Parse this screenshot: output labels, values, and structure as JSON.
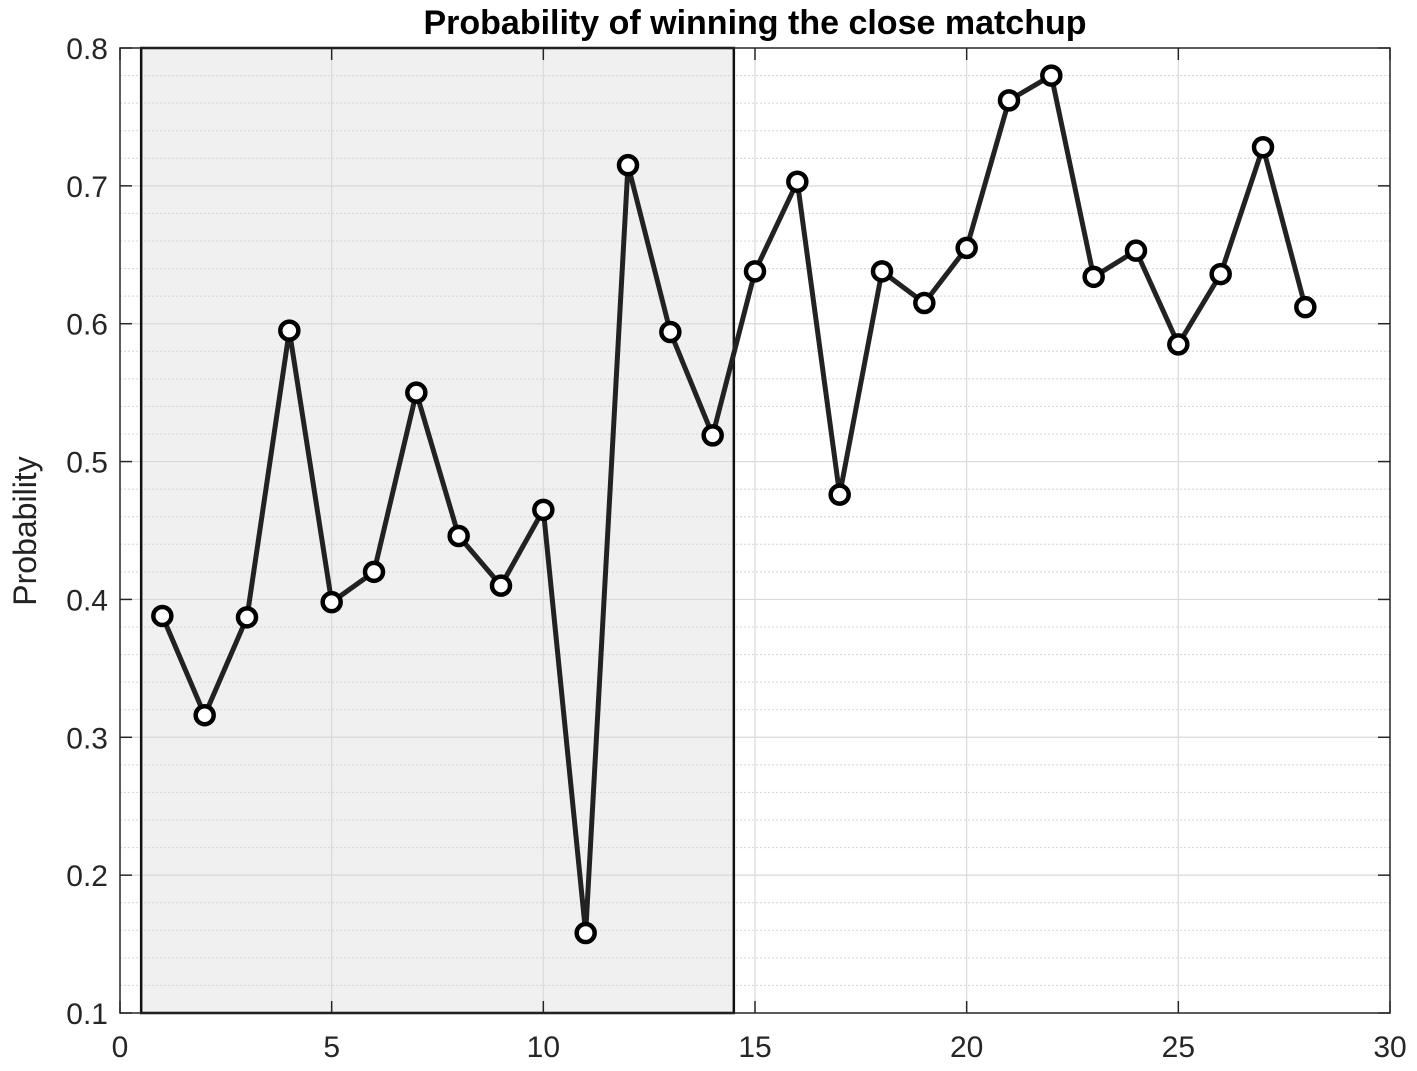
{
  "chart_data": {
    "type": "line",
    "title": "Probability of winning the close matchup",
    "xlabel": "",
    "ylabel": "Probability",
    "xlim": [
      0,
      30
    ],
    "ylim": [
      0.1,
      0.8
    ],
    "xticks": [
      0,
      5,
      10,
      15,
      20,
      25,
      30
    ],
    "yticks": [
      0.1,
      0.2,
      0.3,
      0.4,
      0.5,
      0.6,
      0.7,
      0.8
    ],
    "grid": true,
    "minor_grid_y": true,
    "shaded_region": {
      "x_start": 0.5,
      "x_end": 14.5,
      "color": "#f0f0f0"
    },
    "series": [
      {
        "color": "#222222",
        "marker": "open-circle",
        "x": [
          1,
          2,
          3,
          4,
          5,
          6,
          7,
          8,
          9,
          10,
          11,
          12,
          13,
          14,
          15,
          16,
          17,
          18,
          19,
          20,
          21,
          22,
          23,
          24,
          25,
          26,
          27,
          28
        ],
        "y": [
          0.388,
          0.316,
          0.387,
          0.595,
          0.398,
          0.42,
          0.55,
          0.446,
          0.41,
          0.465,
          0.158,
          0.715,
          0.594,
          0.519,
          0.638,
          0.703,
          0.476,
          0.638,
          0.615,
          0.655,
          0.762,
          0.78,
          0.634,
          0.653,
          0.585,
          0.636,
          0.728,
          0.612
        ]
      }
    ]
  }
}
